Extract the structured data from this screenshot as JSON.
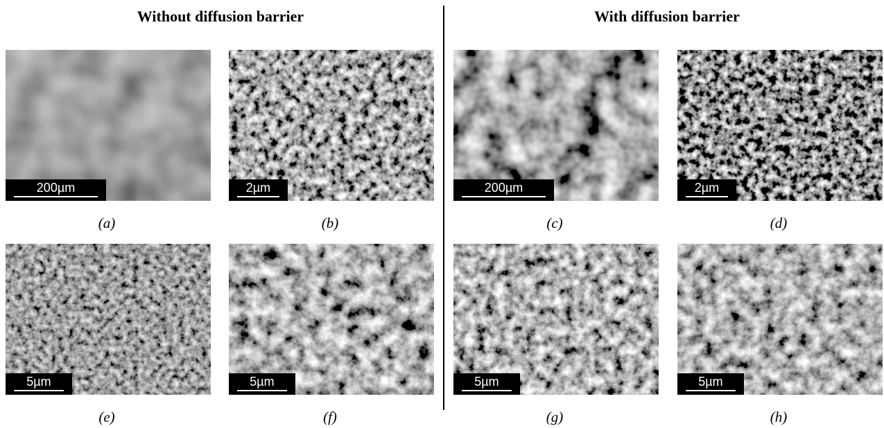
{
  "headings": {
    "left": "Without diffusion barrier",
    "right": "With diffusion barrier"
  },
  "panels": [
    {
      "scale_bar": "200µm",
      "caption": "(a)"
    },
    {
      "scale_bar": "2µm",
      "caption": "(b)"
    },
    {
      "scale_bar": "200µm",
      "caption": "(c)"
    },
    {
      "scale_bar": "2µm",
      "caption": "(d)"
    },
    {
      "scale_bar": "5µm",
      "caption": "(e)"
    },
    {
      "scale_bar": "5µm",
      "caption": "(f)"
    },
    {
      "scale_bar": "5µm",
      "caption": "(g)"
    },
    {
      "scale_bar": "5µm",
      "caption": "(h)"
    }
  ]
}
